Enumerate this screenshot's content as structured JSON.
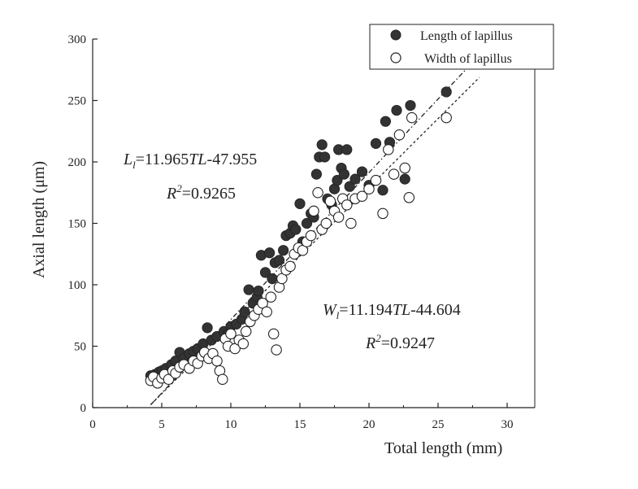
{
  "chart_data": {
    "type": "scatter",
    "title": "",
    "xlabel": "Total length (mm)",
    "ylabel": "Axial length (μm)",
    "xlim": [
      0,
      32
    ],
    "ylim": [
      0,
      300
    ],
    "xticks": [
      0,
      5,
      10,
      15,
      20,
      25,
      30
    ],
    "yticks": [
      0,
      50,
      100,
      150,
      200,
      250,
      300
    ],
    "grid": false,
    "legend_position": "top-right",
    "series": [
      {
        "name": "Length of lapillus",
        "marker": "filled-circle",
        "color": "#333333",
        "points": [
          [
            4.2,
            26
          ],
          [
            4.5,
            27
          ],
          [
            4.8,
            29
          ],
          [
            5.0,
            30
          ],
          [
            5.3,
            32
          ],
          [
            5.7,
            35
          ],
          [
            6.0,
            38
          ],
          [
            6.3,
            45
          ],
          [
            6.6,
            40
          ],
          [
            7.0,
            44
          ],
          [
            7.3,
            46
          ],
          [
            7.6,
            48
          ],
          [
            8.0,
            52
          ],
          [
            8.3,
            65
          ],
          [
            8.6,
            55
          ],
          [
            9.0,
            58
          ],
          [
            9.5,
            62
          ],
          [
            9.8,
            60
          ],
          [
            10.0,
            66
          ],
          [
            10.4,
            68
          ],
          [
            10.8,
            72
          ],
          [
            11.0,
            78
          ],
          [
            11.3,
            96
          ],
          [
            11.6,
            85
          ],
          [
            11.9,
            90
          ],
          [
            12.0,
            95
          ],
          [
            12.2,
            124
          ],
          [
            12.5,
            110
          ],
          [
            12.8,
            126
          ],
          [
            13.0,
            105
          ],
          [
            13.2,
            118
          ],
          [
            13.5,
            120
          ],
          [
            13.8,
            128
          ],
          [
            14.0,
            140
          ],
          [
            14.3,
            142
          ],
          [
            14.5,
            148
          ],
          [
            14.7,
            145
          ],
          [
            15.0,
            166
          ],
          [
            15.2,
            135
          ],
          [
            15.5,
            150
          ],
          [
            15.8,
            158
          ],
          [
            16.0,
            155
          ],
          [
            16.2,
            190
          ],
          [
            16.4,
            204
          ],
          [
            16.6,
            214
          ],
          [
            16.8,
            204
          ],
          [
            17.0,
            170
          ],
          [
            17.3,
            165
          ],
          [
            17.5,
            178
          ],
          [
            17.7,
            185
          ],
          [
            17.8,
            210
          ],
          [
            18.0,
            195
          ],
          [
            18.2,
            190
          ],
          [
            18.4,
            210
          ],
          [
            18.6,
            180
          ],
          [
            19.0,
            186
          ],
          [
            19.5,
            192
          ],
          [
            20.0,
            181
          ],
          [
            20.5,
            215
          ],
          [
            21.0,
            177
          ],
          [
            21.2,
            233
          ],
          [
            21.5,
            216
          ],
          [
            22.0,
            242
          ],
          [
            22.6,
            186
          ],
          [
            23.0,
            246
          ],
          [
            25.6,
            257
          ]
        ]
      },
      {
        "name": "Width of lapillus",
        "marker": "open-circle",
        "color": "#333333",
        "points": [
          [
            4.2,
            22
          ],
          [
            4.4,
            25
          ],
          [
            4.7,
            20
          ],
          [
            5.0,
            24
          ],
          [
            5.2,
            27
          ],
          [
            5.5,
            23
          ],
          [
            5.8,
            30
          ],
          [
            6.0,
            28
          ],
          [
            6.3,
            33
          ],
          [
            6.6,
            35
          ],
          [
            7.0,
            32
          ],
          [
            7.3,
            38
          ],
          [
            7.6,
            36
          ],
          [
            7.9,
            42
          ],
          [
            8.1,
            45
          ],
          [
            8.4,
            40
          ],
          [
            8.7,
            44
          ],
          [
            9.0,
            38
          ],
          [
            9.2,
            30
          ],
          [
            9.4,
            23
          ],
          [
            9.6,
            56
          ],
          [
            9.8,
            50
          ],
          [
            10.0,
            60
          ],
          [
            10.3,
            48
          ],
          [
            10.6,
            55
          ],
          [
            10.9,
            52
          ],
          [
            11.1,
            62
          ],
          [
            11.4,
            70
          ],
          [
            11.7,
            75
          ],
          [
            12.0,
            80
          ],
          [
            12.3,
            85
          ],
          [
            12.6,
            78
          ],
          [
            12.9,
            90
          ],
          [
            13.1,
            60
          ],
          [
            13.3,
            47
          ],
          [
            13.5,
            98
          ],
          [
            13.7,
            105
          ],
          [
            14.0,
            112
          ],
          [
            14.3,
            115
          ],
          [
            14.6,
            125
          ],
          [
            14.9,
            130
          ],
          [
            15.2,
            128
          ],
          [
            15.5,
            135
          ],
          [
            15.8,
            140
          ],
          [
            16.0,
            160
          ],
          [
            16.3,
            175
          ],
          [
            16.6,
            145
          ],
          [
            16.9,
            150
          ],
          [
            17.2,
            168
          ],
          [
            17.5,
            160
          ],
          [
            17.8,
            155
          ],
          [
            18.1,
            170
          ],
          [
            18.4,
            165
          ],
          [
            18.7,
            150
          ],
          [
            19.0,
            170
          ],
          [
            19.5,
            172
          ],
          [
            20.0,
            178
          ],
          [
            20.5,
            185
          ],
          [
            21.0,
            158
          ],
          [
            21.4,
            210
          ],
          [
            21.8,
            190
          ],
          [
            22.2,
            222
          ],
          [
            22.6,
            195
          ],
          [
            22.9,
            171
          ],
          [
            23.1,
            236
          ],
          [
            25.6,
            236
          ]
        ]
      }
    ],
    "fit_lines": [
      {
        "series": "Length of lapillus",
        "style": "dash-dot",
        "slope": 11.965,
        "intercept": -47.955,
        "x_range": [
          4.2,
          28.0
        ]
      },
      {
        "series": "Width of lapillus",
        "style": "dotted",
        "slope": 11.194,
        "intercept": -44.604,
        "x_range": [
          4.2,
          28.0
        ]
      }
    ],
    "annotations": {
      "length_eq_prefix": "L",
      "length_eq_sub": "l",
      "length_eq_mid": "=11.965",
      "length_eq_var": "TL",
      "length_eq_suffix": "-47.955",
      "length_r2_label": "R",
      "length_r2_sup": "2",
      "length_r2_value": "=0.9265",
      "width_eq_prefix": "W",
      "width_eq_sub": "l",
      "width_eq_mid": "=11.194",
      "width_eq_var": "TL",
      "width_eq_suffix": "-44.604",
      "width_r2_label": "R",
      "width_r2_sup": "2",
      "width_r2_value": "=0.9247"
    }
  }
}
